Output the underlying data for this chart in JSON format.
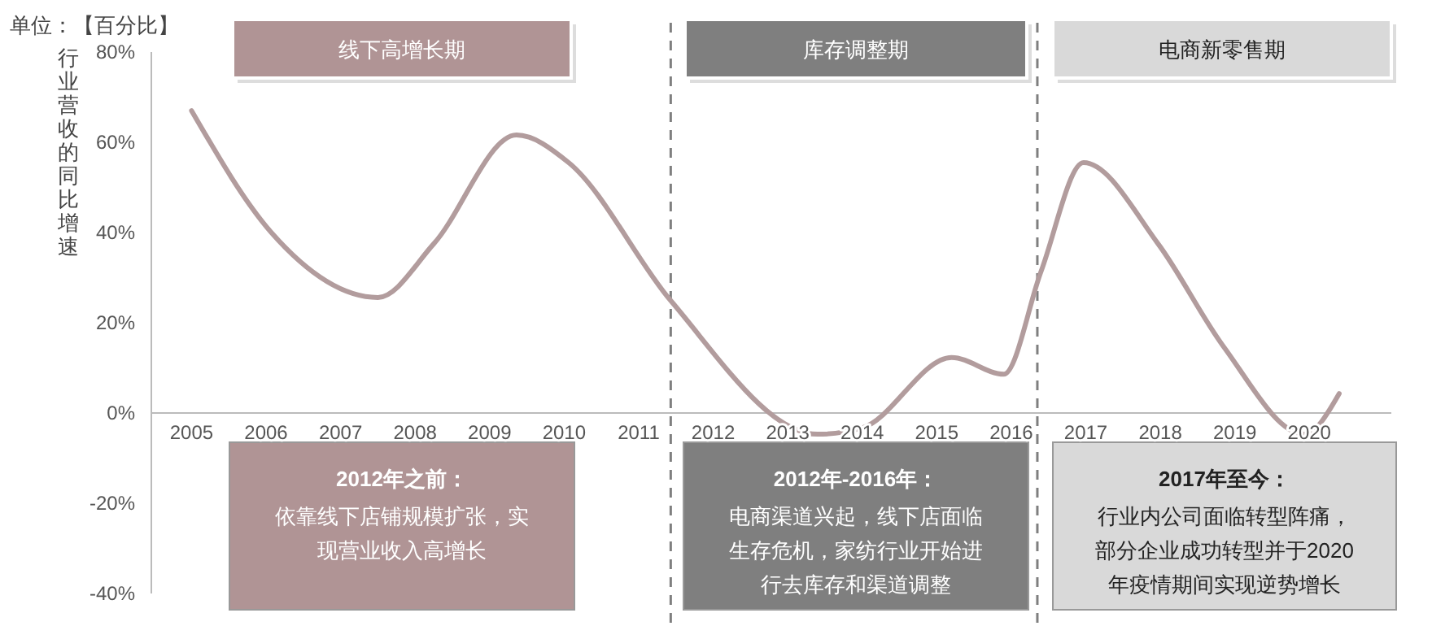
{
  "chart_data": {
    "type": "line",
    "ylabel": "行业营收的同比增速",
    "annotations": [
      "单位：【百分比】",
      "线下高增长期",
      "库存调整期",
      "电商新零售期",
      "2012年之前：",
      "2012年-2016年：",
      "2017年至今：",
      "依靠线下店铺规模扩张，实现营业收入高增长",
      "电商渠道兴起，线下店面临生存危机，家纺行业开始进行去库存和渠道调整",
      "行业内公司面临转型阵痛，部分企业成功转型并于2020年疫情期间实现逆势增长"
    ],
    "series": [
      {
        "color": "#b29c9d",
        "x": [
          2005,
          2006.07,
          2007.5,
          2008.25,
          2009.36,
          2010.06,
          2011.43,
          2013.4,
          2014.0,
          2015.2,
          2015.9,
          2016.4,
          2016.97,
          2017.97,
          2018.85,
          2019.93,
          2020.4
        ],
        "values": [
          67,
          40,
          25.6,
          37.5,
          61.6,
          55.5,
          24.9,
          -4.7,
          -3.3,
          12.3,
          8.6,
          31.4,
          55.5,
          37.5,
          14.7,
          -4.7,
          4.3
        ]
      }
    ],
    "xlim": [
      2004.46,
      2021.1
    ],
    "xticks": [
      2005,
      2006,
      2007,
      2008,
      2009,
      2010,
      2011,
      2012,
      2013,
      2014,
      2015,
      2016,
      2017,
      2018,
      2019,
      2020
    ],
    "ylim": [
      -40,
      80
    ],
    "yticks": [
      {
        "value": -40,
        "label": "-40%"
      },
      {
        "value": -20,
        "label": "-20%"
      },
      {
        "value": 0,
        "label": "0%"
      },
      {
        "value": 20,
        "label": "20%"
      },
      {
        "value": 40,
        "label": "40%"
      },
      {
        "value": 60,
        "label": "60%"
      },
      {
        "value": 80,
        "label": "80%"
      }
    ],
    "ref_lines": [
      {
        "axis": "x",
        "value": 2011.43,
        "color": "#7f7f7f",
        "line_style": "dashed"
      },
      {
        "axis": "x",
        "value": 2016.35,
        "color": "#7f7f7f",
        "line_style": "dashed"
      }
    ],
    "line_style": "solid"
  }
}
